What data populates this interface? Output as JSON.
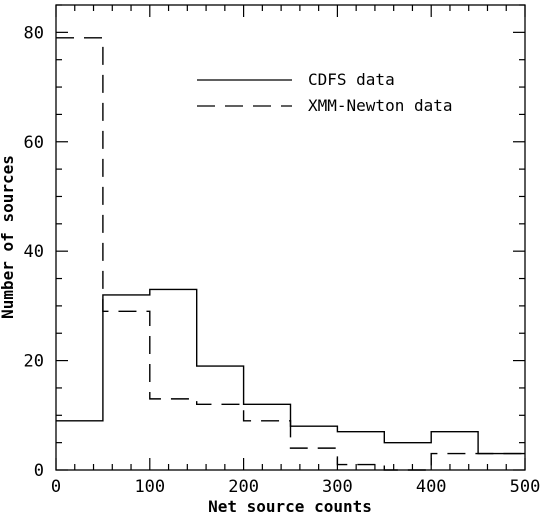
{
  "chart_data": {
    "type": "line",
    "subtype": "step-histogram",
    "xlabel": "Net source counts",
    "ylabel": "Number of sources",
    "xlim": [
      0,
      500
    ],
    "ylim": [
      0,
      85
    ],
    "x_ticks": [
      0,
      100,
      200,
      300,
      400,
      500
    ],
    "y_ticks": [
      0,
      20,
      40,
      60,
      80
    ],
    "grid": false,
    "legend_position": "top-right",
    "bin_edges": [
      0,
      50,
      100,
      150,
      200,
      250,
      300,
      350,
      400,
      450,
      500
    ],
    "series": [
      {
        "name": "CDFS data",
        "line_style": "solid",
        "color": "#000000",
        "values": [
          9,
          32,
          33,
          19,
          12,
          8,
          7,
          5,
          7,
          3
        ]
      },
      {
        "name": "XMM-Newton data",
        "line_style": "dashed",
        "color": "#000000",
        "values": [
          79,
          29,
          13,
          12,
          9,
          4,
          1,
          0,
          3,
          3
        ]
      }
    ]
  }
}
